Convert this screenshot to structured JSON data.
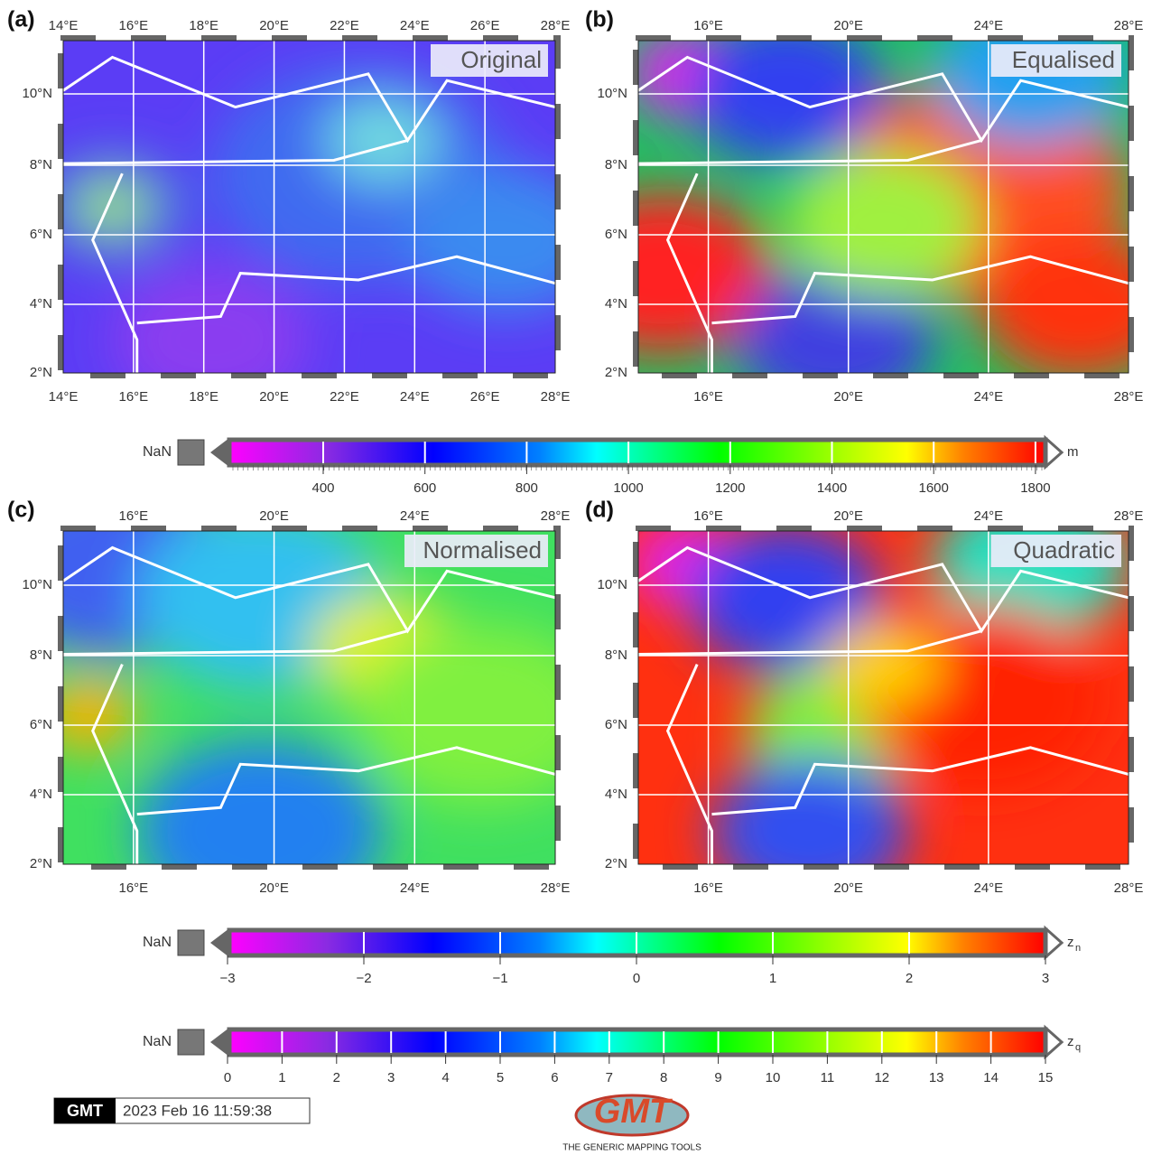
{
  "panels": [
    {
      "label": "(a)",
      "title": "Original",
      "top_ticks": [
        "14°E",
        "16°E",
        "18°E",
        "20°E",
        "22°E",
        "24°E",
        "26°E",
        "28°E"
      ],
      "bottom_ticks": [
        "14°E",
        "16°E",
        "18°E",
        "20°E",
        "22°E",
        "24°E",
        "26°E",
        "28°E"
      ],
      "left_ticks": [
        "2°N",
        "4°N",
        "6°N",
        "8°N",
        "10°N"
      ]
    },
    {
      "label": "(b)",
      "title": "Equalised",
      "top_ticks": [
        "16°E",
        "20°E",
        "24°E",
        "28°E"
      ],
      "bottom_ticks": [
        "16°E",
        "20°E",
        "24°E",
        "28°E"
      ],
      "left_ticks": [
        "2°N",
        "4°N",
        "6°N",
        "8°N",
        "10°N"
      ]
    },
    {
      "label": "(c)",
      "title": "Normalised",
      "top_ticks": [
        "16°E",
        "20°E",
        "24°E",
        "28°E"
      ],
      "bottom_ticks": [
        "16°E",
        "20°E",
        "24°E",
        "28°E"
      ],
      "left_ticks": [
        "2°N",
        "4°N",
        "6°N",
        "8°N",
        "10°N"
      ]
    },
    {
      "label": "(d)",
      "title": "Quadratic",
      "top_ticks": [
        "16°E",
        "20°E",
        "24°E",
        "28°E"
      ],
      "bottom_ticks": [
        "16°E",
        "20°E",
        "24°E",
        "28°E"
      ],
      "left_ticks": [
        "2°N",
        "4°N",
        "6°N",
        "8°N",
        "10°N"
      ]
    }
  ],
  "colorbars": [
    {
      "nan": "NaN",
      "unit": "m",
      "ticks": [
        "400",
        "600",
        "800",
        "1000",
        "1200",
        "1400",
        "1600",
        "1800"
      ]
    },
    {
      "nan": "NaN",
      "unit": "z",
      "unit_subscript": "n",
      "ticks": [
        "−3",
        "−2",
        "−1",
        "0",
        "1",
        "2",
        "3"
      ]
    },
    {
      "nan": "NaN",
      "unit": "z",
      "unit_subscript": "q",
      "ticks": [
        "0",
        "1",
        "2",
        "3",
        "4",
        "5",
        "6",
        "7",
        "8",
        "9",
        "10",
        "11",
        "12",
        "13",
        "14",
        "15"
      ]
    }
  ],
  "footer": {
    "badge": "GMT",
    "timestamp": "2023 Feb 16 11:59:38",
    "logo": "GMT",
    "logo_caption": "THE GENERIC MAPPING TOOLS"
  }
}
